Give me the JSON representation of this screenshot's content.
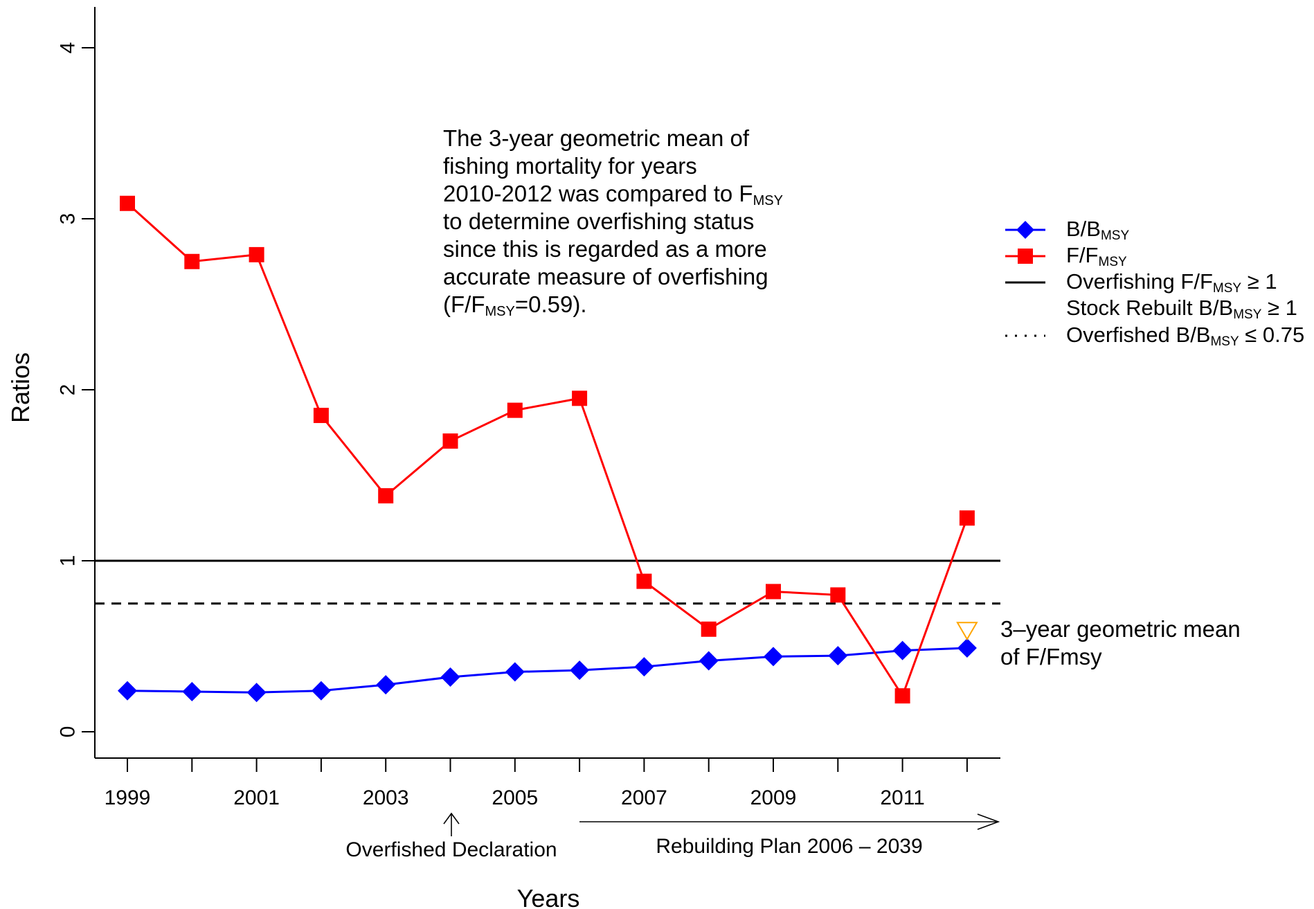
{
  "chart_data": {
    "type": "line",
    "xlabel": "Years",
    "ylabel": "Ratios",
    "ylim": [
      -0.15,
      4.25
    ],
    "xlim": [
      1998.5,
      2012.5
    ],
    "x": [
      1999,
      2000,
      2001,
      2002,
      2003,
      2004,
      2005,
      2006,
      2007,
      2008,
      2009,
      2010,
      2011,
      2012
    ],
    "x_tick_labels": [
      "1999",
      "2001",
      "2003",
      "2005",
      "2007",
      "2009",
      "2011"
    ],
    "y_ticks": [
      0,
      1,
      2,
      3,
      4
    ],
    "y_tick_labels": [
      "0",
      "1",
      "2",
      "3",
      "4"
    ],
    "series": [
      {
        "name": "B/B_MSY",
        "color": "#0000FF",
        "marker": "diamond",
        "values": [
          0.24,
          0.235,
          0.23,
          0.24,
          0.275,
          0.32,
          0.35,
          0.36,
          0.38,
          0.415,
          0.44,
          0.445,
          0.475,
          0.49
        ]
      },
      {
        "name": "F/F_MSY",
        "color": "#FF0000",
        "marker": "square",
        "values": [
          3.09,
          2.75,
          2.79,
          1.85,
          1.38,
          1.7,
          1.88,
          1.95,
          0.88,
          0.6,
          0.82,
          0.8,
          0.21,
          1.25
        ]
      }
    ],
    "reference_lines": [
      {
        "y": 1.0,
        "style": "solid",
        "color": "#000000"
      },
      {
        "y": 0.75,
        "style": "dashed",
        "color": "#000000"
      }
    ],
    "geo_mean_marker": {
      "x": 2012,
      "y": 0.59,
      "color": "#FFA500",
      "marker": "triangle-down-open"
    },
    "grid": false,
    "legend_position": "right",
    "legend": {
      "b_label": "B/B",
      "f_label": "F/F",
      "msy_sub": "MSY",
      "overfishing_pre": "Overfishing F/F",
      "overfishing_post": " ≥ 1",
      "rebuilt_pre": "Stock Rebuilt B/B",
      "rebuilt_post": " ≥ 1",
      "overfished_pre": "Overfished B/B",
      "overfished_post": " ≤ 0.75"
    },
    "annotation": {
      "line1": "The 3-year geometric mean of",
      "line2": "fishing mortality for years",
      "line3_pre": "2010-2012 was compared to F",
      "line4": "to determine overfishing status",
      "line5": "since this is regarded as a more",
      "line6": "accurate measure of overfishing",
      "line7_pre": "(F/F",
      "line7_post": "=0.59).",
      "msy_sub": "MSY"
    },
    "geo_mean_label_line1": "3–year geometric mean",
    "geo_mean_label_line2": "of F/Fmsy",
    "overfished_declaration": "Overfished Declaration",
    "rebuilding_plan": "Rebuilding Plan 2006 – 2039"
  }
}
